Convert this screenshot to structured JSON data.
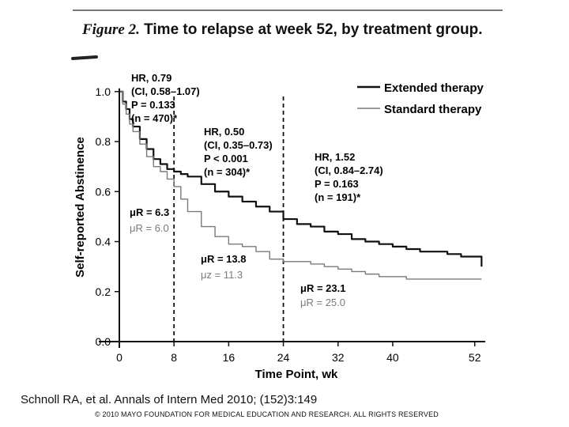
{
  "figure": {
    "label": "Figure 2.",
    "title": "Time to relapse at week 52, by treatment group."
  },
  "citation": "Schnoll RA, et al. Annals of Intern Med 2010; (152)3:149",
  "copyright": "© 2010 MAYO FOUNDATION FOR MEDICAL EDUCATION AND RESEARCH. ALL RIGHTS RESERVED",
  "colors": {
    "extended": "#111111",
    "standard": "#7a7a7a",
    "axis": "#111111"
  },
  "chart_data": {
    "type": "line",
    "title": "Time to relapse at week 52, by treatment group.",
    "xlabel": "Time Point, wk",
    "ylabel": "Self-reported Abstinence",
    "xlim": [
      0,
      54
    ],
    "ylim": [
      0,
      1.05
    ],
    "xticks": [
      0,
      8,
      16,
      24,
      32,
      40,
      52
    ],
    "yticks": [
      0.0,
      0.2,
      0.4,
      0.6,
      0.8,
      1.0
    ],
    "ytick_labels": [
      "0.0",
      "0.2",
      "0.4",
      "0.6",
      "0.8",
      "1.0"
    ],
    "dividers": [
      8,
      24
    ],
    "series": [
      {
        "name": "Extended therapy",
        "color": "#111111",
        "x": [
          0,
          0.5,
          1,
          1.5,
          2,
          3,
          4,
          5,
          6,
          7,
          8,
          9,
          10,
          12,
          14,
          16,
          18,
          20,
          22,
          24,
          26,
          28,
          30,
          32,
          34,
          36,
          38,
          40,
          42,
          44,
          46,
          48,
          50,
          52,
          53
        ],
        "y": [
          1.0,
          0.96,
          0.93,
          0.89,
          0.86,
          0.81,
          0.77,
          0.73,
          0.71,
          0.69,
          0.68,
          0.67,
          0.66,
          0.63,
          0.6,
          0.58,
          0.56,
          0.54,
          0.52,
          0.49,
          0.47,
          0.46,
          0.44,
          0.43,
          0.41,
          0.4,
          0.39,
          0.38,
          0.37,
          0.36,
          0.36,
          0.35,
          0.34,
          0.34,
          0.3
        ]
      },
      {
        "name": "Standard therapy",
        "color": "#7a7a7a",
        "x": [
          0,
          0.5,
          1,
          1.5,
          2,
          3,
          4,
          5,
          6,
          7,
          8,
          9,
          10,
          12,
          14,
          16,
          18,
          20,
          22,
          24,
          26,
          28,
          30,
          32,
          34,
          36,
          38,
          40,
          42,
          44,
          46,
          48,
          50,
          52,
          53
        ],
        "y": [
          1.0,
          0.95,
          0.91,
          0.87,
          0.84,
          0.79,
          0.74,
          0.7,
          0.68,
          0.65,
          0.62,
          0.57,
          0.52,
          0.46,
          0.42,
          0.39,
          0.38,
          0.36,
          0.33,
          0.32,
          0.32,
          0.31,
          0.3,
          0.29,
          0.28,
          0.27,
          0.26,
          0.26,
          0.25,
          0.25,
          0.25,
          0.25,
          0.25,
          0.25,
          0.25
        ]
      }
    ],
    "annotations": [
      {
        "id": "hr-1",
        "lines": [
          "HR, 0.79",
          "(CI, 0.58–1.07)",
          "P = 0.133",
          "(n = 470)*"
        ]
      },
      {
        "id": "hr-2",
        "lines": [
          "HR, 0.50",
          "(CI, 0.35–0.73)",
          "P < 0.001",
          "(n = 304)*"
        ]
      },
      {
        "id": "hr-3",
        "lines": [
          "HR, 1.52",
          "(CI, 0.84–2.74)",
          "P = 0.163",
          "(n = 191)*"
        ]
      },
      {
        "id": "mu-1",
        "lines": [
          "μR = 6.3",
          "μR = 6.0"
        ]
      },
      {
        "id": "mu-2",
        "lines": [
          "μR = 13.8",
          "μz = 11.3"
        ]
      },
      {
        "id": "mu-3",
        "lines": [
          "μR = 23.1",
          "μR = 25.0"
        ]
      }
    ]
  }
}
